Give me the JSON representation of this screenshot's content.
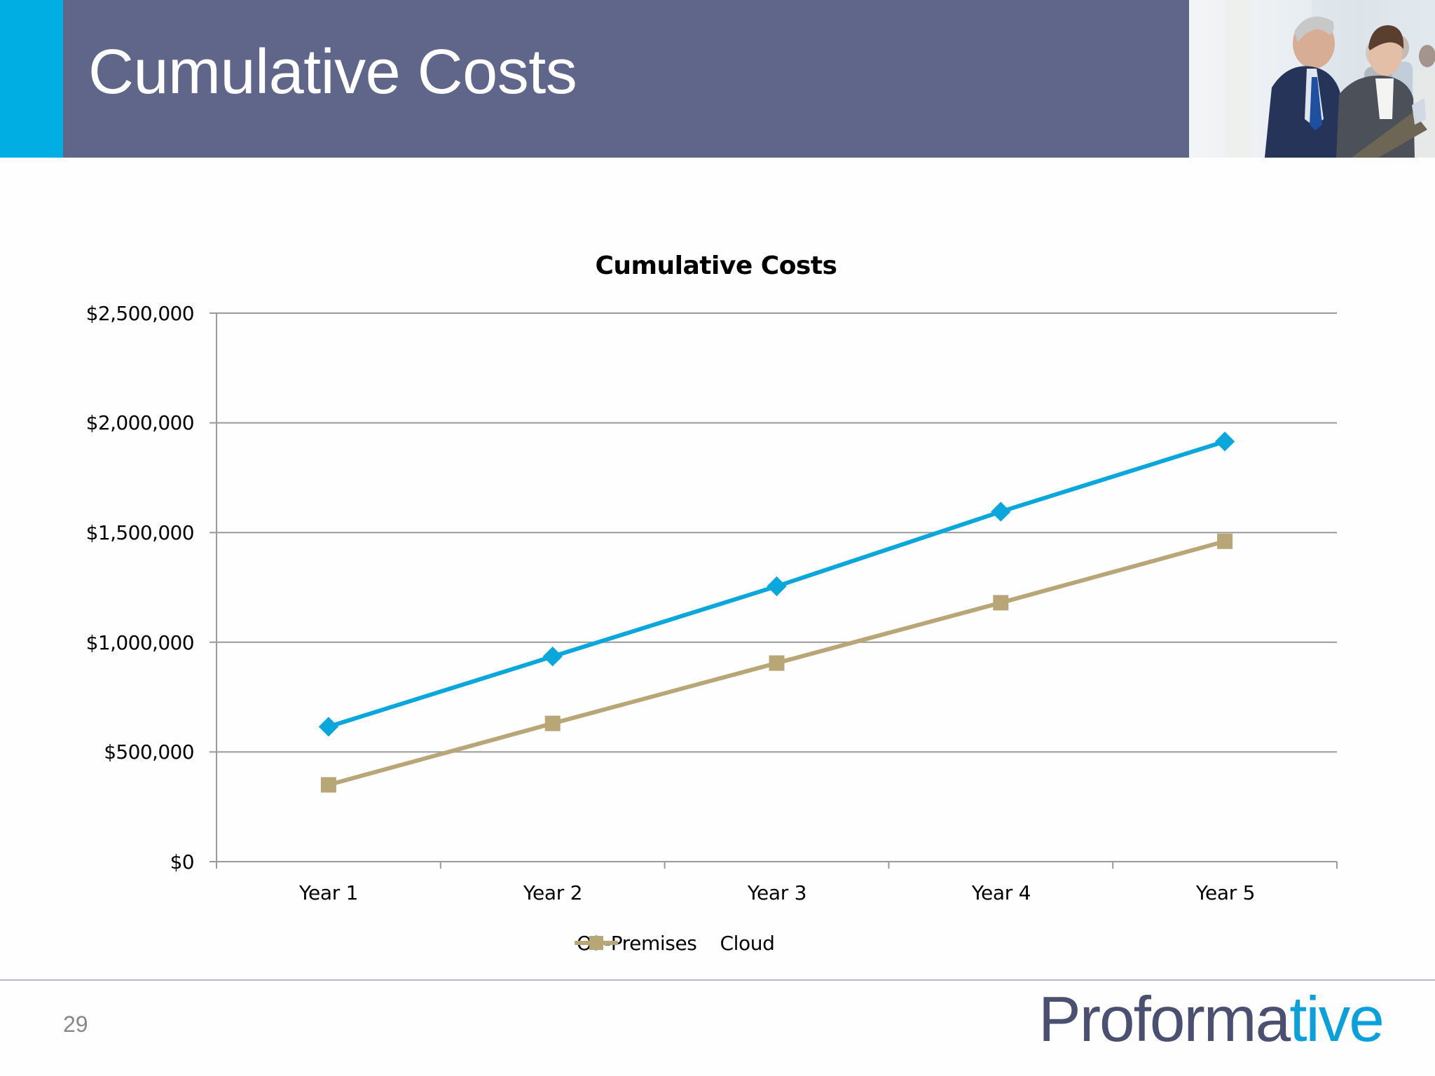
{
  "slide": {
    "title": "Cumulative Costs",
    "page_number": "29",
    "colors": {
      "accent_bar": "#00aee3",
      "title_band": "#5f6689",
      "title_text": "#ffffff"
    },
    "photo": {
      "description": "business-people-reviewing-document-photo"
    }
  },
  "logo": {
    "part1": "Proforma",
    "part2": "tive",
    "color1": "#4b4f70",
    "color2": "#0aa0dc"
  },
  "chart_data": {
    "type": "line",
    "title": "Cumulative Costs",
    "xlabel": "",
    "ylabel": "",
    "categories": [
      "Year 1",
      "Year 2",
      "Year 3",
      "Year 4",
      "Year 5"
    ],
    "series": [
      {
        "name": "On-Premises",
        "color": "#0aa7dd",
        "marker": "diamond",
        "values": [
          615000,
          935000,
          1255000,
          1595000,
          1915000
        ]
      },
      {
        "name": "Cloud",
        "color": "#b8a677",
        "marker": "square",
        "values": [
          350000,
          630000,
          905000,
          1180000,
          1460000
        ]
      }
    ],
    "ylim": [
      0,
      2500000
    ],
    "yticks": [
      0,
      500000,
      1000000,
      1500000,
      2000000,
      2500000
    ],
    "ytick_labels": [
      "$0",
      "$500,000",
      "$1,000,000",
      "$1,500,000",
      "$2,000,000",
      "$2,500,000"
    ],
    "grid": true,
    "legend_position": "bottom"
  }
}
